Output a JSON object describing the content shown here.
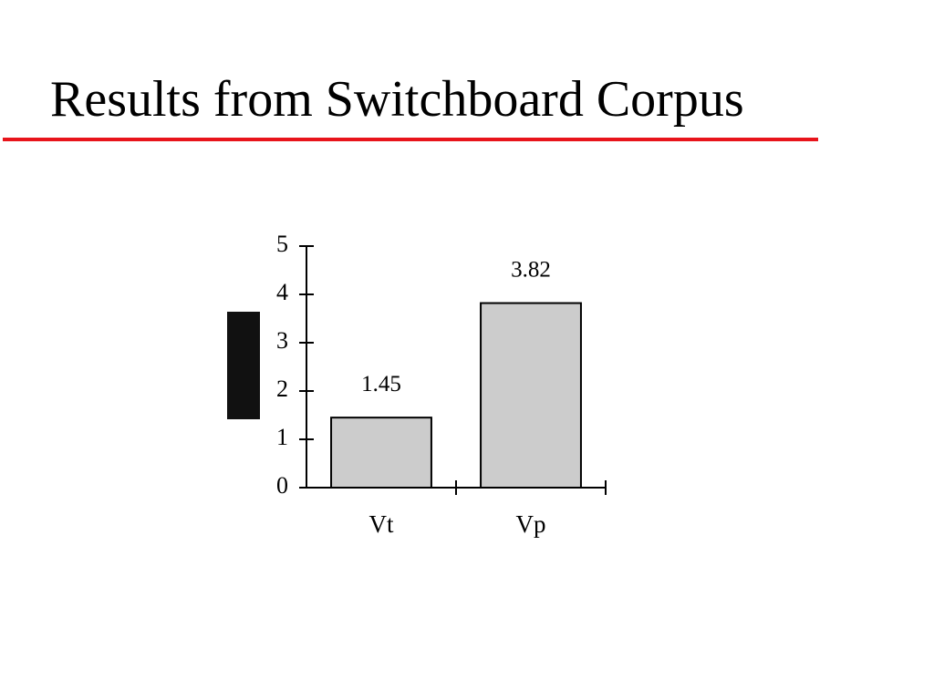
{
  "chart_data": {
    "type": "bar",
    "title": "Results from Switchboard Corpus",
    "categories": [
      "Vt",
      "Vp"
    ],
    "values": [
      1.45,
      3.82
    ],
    "color": "#cccccc",
    "ylim": [
      0,
      5
    ],
    "yticks": [
      0,
      1,
      2,
      3,
      4,
      5
    ]
  }
}
